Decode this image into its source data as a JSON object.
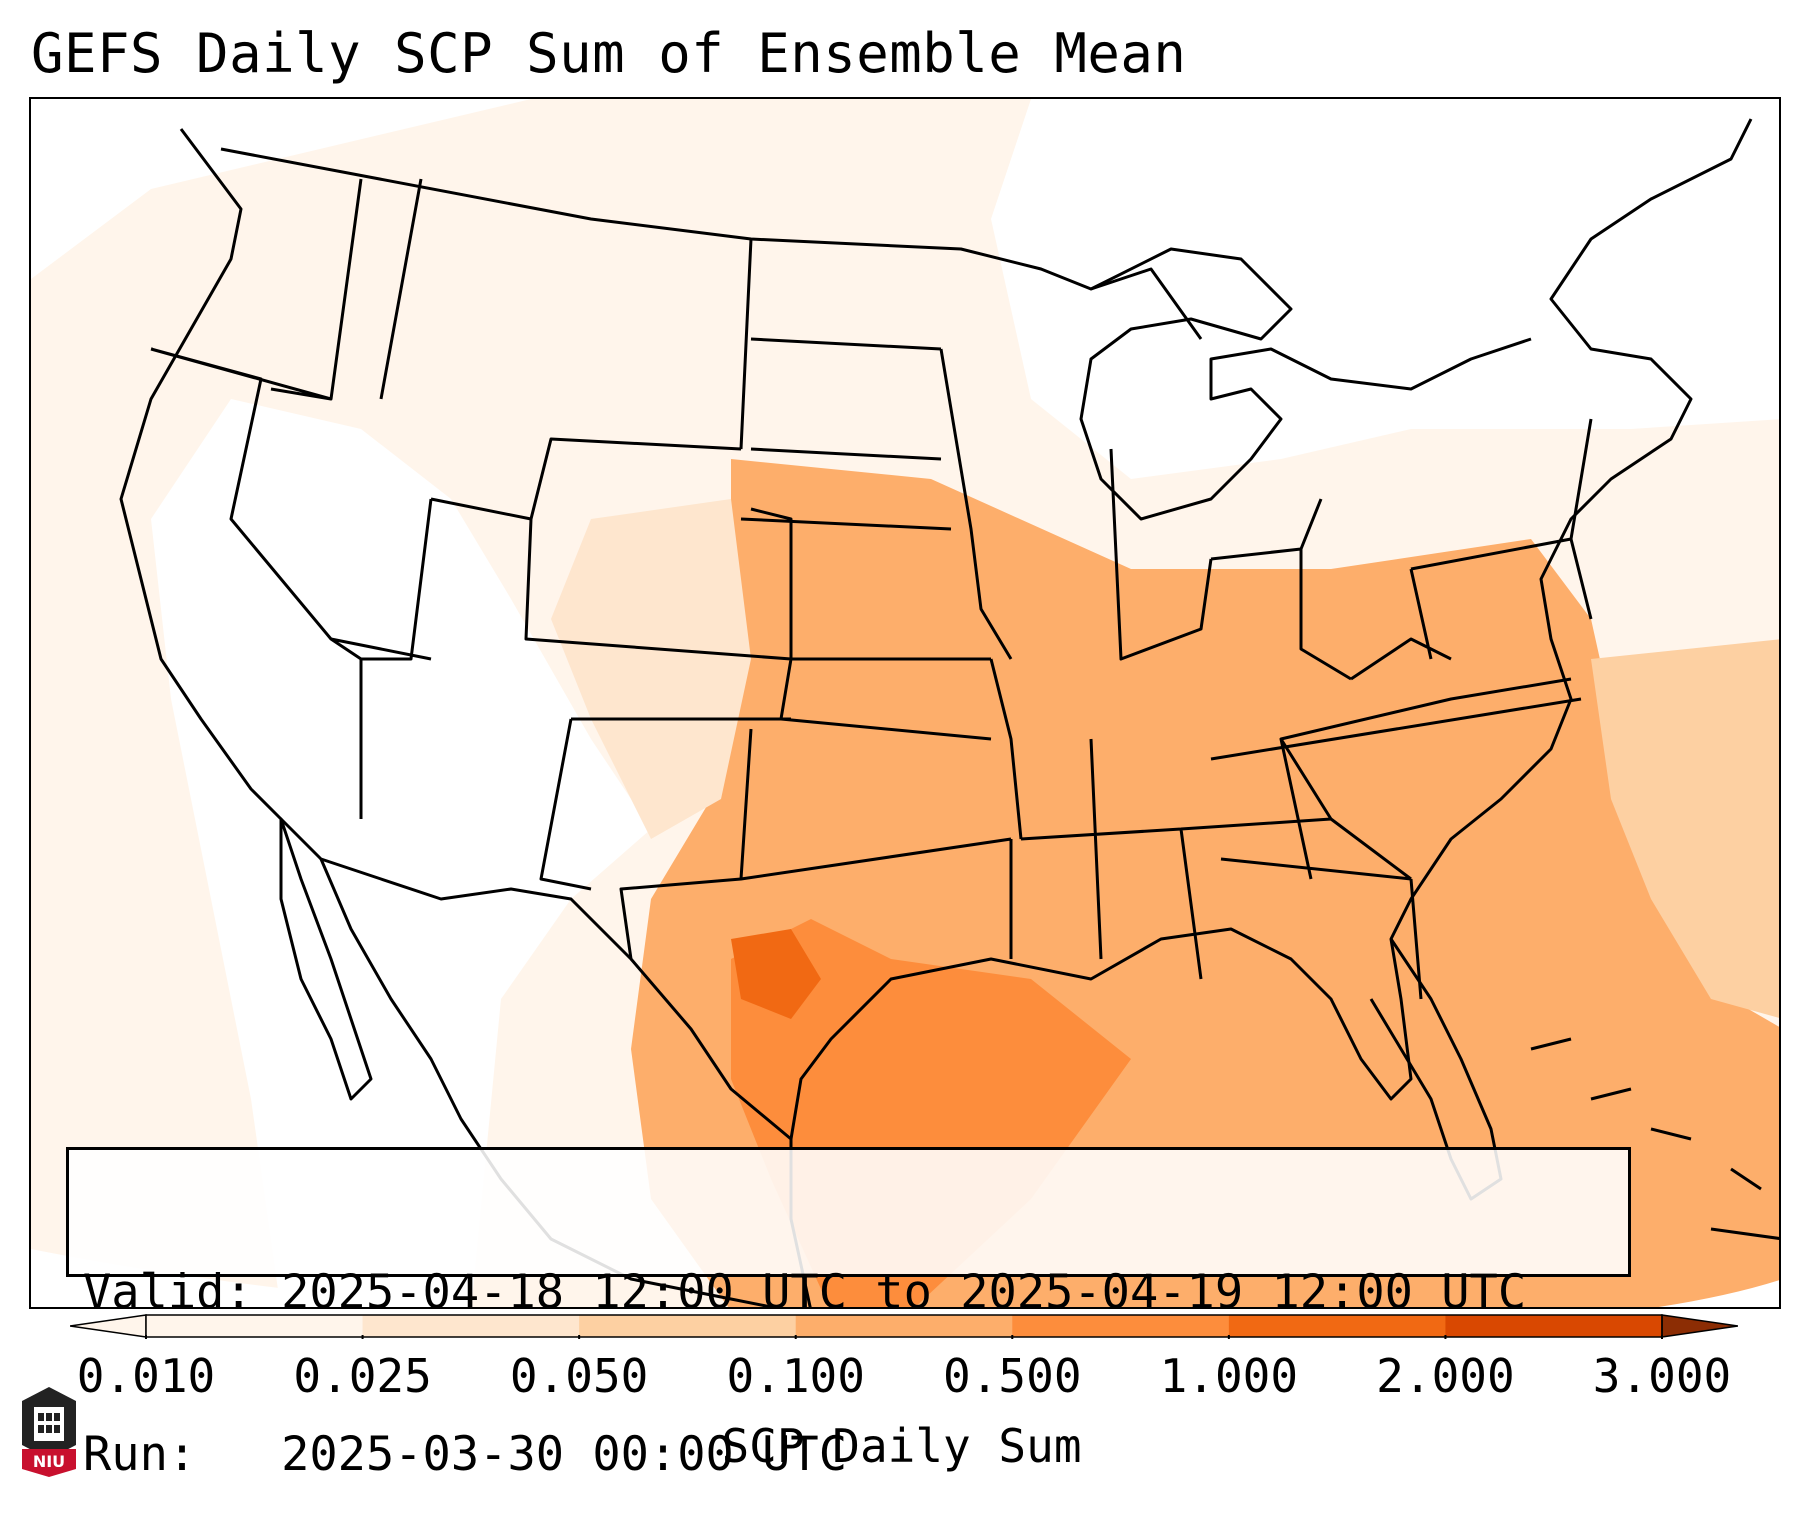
{
  "title": "GEFS Daily SCP Sum of Ensemble Mean",
  "info": {
    "valid_line": "Valid: 2025-04-18 12:00 UTC to 2025-04-19 12:00 UTC",
    "run_line": "Run:   2025-03-30 00:00 UTC"
  },
  "colorbar": {
    "label": "SCP Daily Sum",
    "ticks": [
      "0.010",
      "0.025",
      "0.050",
      "0.100",
      "0.500",
      "1.000",
      "2.000",
      "3.000"
    ],
    "colors": [
      "#fff5eb",
      "#fee6ce",
      "#fdd0a2",
      "#fdae6b",
      "#fd8d3c",
      "#f16913",
      "#d94801",
      "#8c2d04"
    ]
  },
  "logo": {
    "text": "NIU",
    "color": "#c8102e"
  }
}
